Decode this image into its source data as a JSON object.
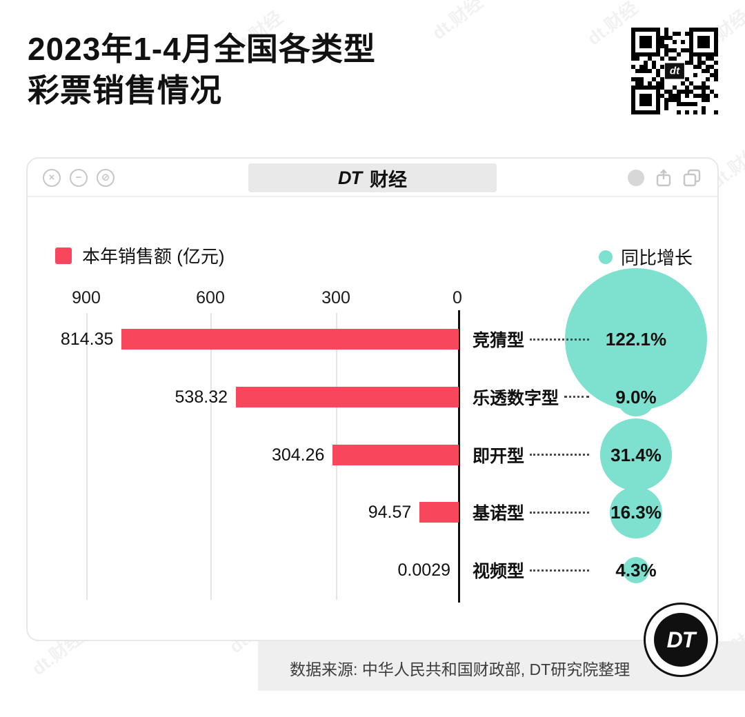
{
  "watermark": {
    "text": "dt.财经"
  },
  "header": {
    "title_line1": "2023年1-4月全国各类型",
    "title_line2": "彩票销售情况",
    "qr_label": "dt"
  },
  "window": {
    "titlebar": {
      "logo": "DT",
      "label": "财经"
    },
    "controls": {
      "close": "×",
      "minimize": "−",
      "slash": "⊘"
    }
  },
  "legend": {
    "sales_label": "本年销售额 (亿元)",
    "growth_label": "同比增长"
  },
  "chart_data": {
    "type": "bar",
    "orientation": "horizontal",
    "title": "2023年1-4月全国各类型彩票销售情况",
    "categories": [
      "竞猜型",
      "乐透数字型",
      "即开型",
      "基诺型",
      "视频型"
    ],
    "series": [
      {
        "name": "本年销售额(亿元)",
        "values": [
          814.35,
          538.32,
          304.26,
          94.57,
          0.0029
        ],
        "labels": [
          "814.35",
          "538.32",
          "304.26",
          "94.57",
          "0.0029"
        ],
        "color": "#F8475D"
      },
      {
        "name": "同比增长",
        "values": [
          122.1,
          9.0,
          31.4,
          16.3,
          4.3
        ],
        "labels": [
          "122.1%",
          "9.0%",
          "31.4%",
          "16.3%",
          "4.3%"
        ],
        "color": "#7EE0CE"
      }
    ],
    "x_ticks": [
      "900",
      "600",
      "300",
      "0"
    ],
    "xlim": [
      900,
      0
    ],
    "axis_reversed": true,
    "grid": "vertical-gridlines"
  },
  "footer": {
    "source": "数据来源: 中华人民共和国财政部, DT研究院整理",
    "logo_text": "DT"
  }
}
